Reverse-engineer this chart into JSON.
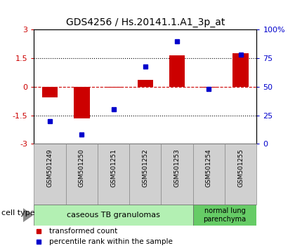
{
  "title": "GDS4256 / Hs.20141.1.A1_3p_at",
  "samples": [
    "GSM501249",
    "GSM501250",
    "GSM501251",
    "GSM501252",
    "GSM501253",
    "GSM501254",
    "GSM501255"
  ],
  "transformed_count": [
    -0.55,
    -1.65,
    -0.05,
    0.35,
    1.65,
    -0.05,
    1.75
  ],
  "percentile_rank": [
    20,
    8,
    30,
    68,
    90,
    48,
    78
  ],
  "bar_color": "#cc0000",
  "dot_color": "#0000cc",
  "ylim_left": [
    -3,
    3
  ],
  "ylim_right": [
    0,
    100
  ],
  "left_ytick_vals": [
    -3,
    -1.5,
    0,
    1.5,
    3
  ],
  "left_ytick_labels": [
    "-3",
    "-1.5",
    "0",
    "1.5",
    "3"
  ],
  "right_ytick_vals": [
    0,
    25,
    50,
    75,
    100
  ],
  "right_ytick_labels": [
    "0",
    "25",
    "50",
    "75",
    "100%"
  ],
  "cell_type_groups": [
    {
      "label": "caseous TB granulomas",
      "n_samples": 5,
      "color": "#b3f0b3"
    },
    {
      "label": "normal lung\nparenchyma",
      "n_samples": 2,
      "color": "#66cc66"
    }
  ],
  "cell_type_label": "cell type",
  "legend_items": [
    {
      "label": "transformed count",
      "color": "#cc0000"
    },
    {
      "label": "percentile rank within the sample",
      "color": "#0000cc"
    }
  ],
  "bg_color": "#ffffff",
  "sample_box_color": "#d0d0d0",
  "bar_width": 0.5
}
